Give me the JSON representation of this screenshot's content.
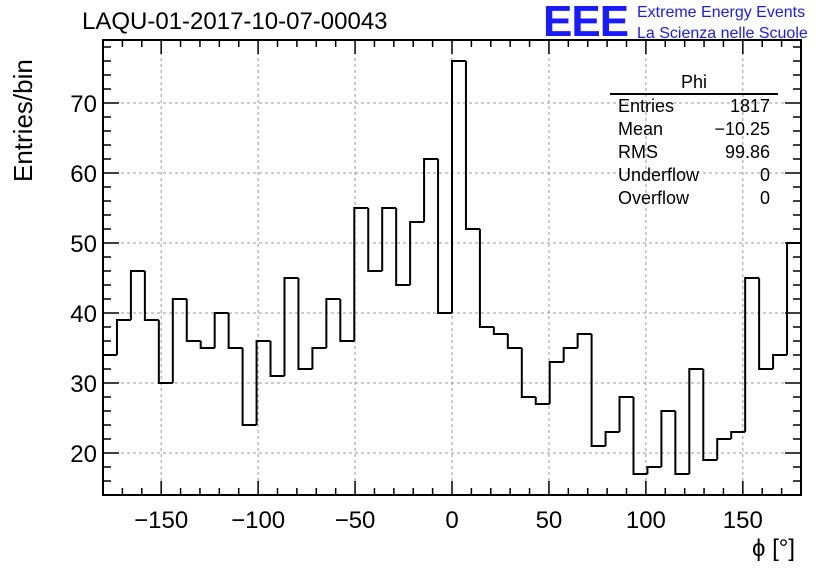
{
  "header": {
    "title": "LAQU-01-2017-10-07-00043"
  },
  "logo": {
    "mark": "EEE",
    "line1": "Extreme Energy Events",
    "line2": "La Scienza nelle Scuole",
    "color": "#1a1aff"
  },
  "stats": {
    "title": "Phi",
    "rows": [
      {
        "label": "Entries",
        "value": "1817"
      },
      {
        "label": "Mean",
        "value": "−10.25"
      },
      {
        "label": "RMS",
        "value": "99.86"
      },
      {
        "label": "Underflow",
        "value": "0"
      },
      {
        "label": "Overflow",
        "value": "0"
      }
    ]
  },
  "chart_data": {
    "type": "histogram",
    "title": "LAQU-01-2017-10-07-00043",
    "xlabel": "ϕ [°]",
    "ylabel": "Entries/bin",
    "xlim": [
      -180,
      180
    ],
    "ylim": [
      14,
      79
    ],
    "grid": true,
    "bin_width": 7.2,
    "bin_edges_start": -180,
    "values": [
      34,
      39,
      46,
      39,
      30,
      42,
      36,
      35,
      40,
      35,
      24,
      36,
      31,
      45,
      32,
      35,
      42,
      36,
      55,
      46,
      55,
      44,
      53,
      62,
      40,
      76,
      52,
      38,
      37,
      35,
      28,
      27,
      33,
      35,
      37,
      21,
      23,
      28,
      17,
      18,
      26,
      17,
      32,
      19,
      22,
      23,
      45,
      32,
      34,
      50
    ],
    "xticks": [
      -150,
      -100,
      -50,
      0,
      50,
      100,
      150
    ],
    "xtick_labels": [
      "−150",
      "−100",
      "−50",
      "0",
      "50",
      "100",
      "150"
    ],
    "yticks": [
      20,
      30,
      40,
      50,
      60,
      70
    ],
    "ytick_labels": [
      "20",
      "30",
      "40",
      "50",
      "60",
      "70"
    ]
  }
}
